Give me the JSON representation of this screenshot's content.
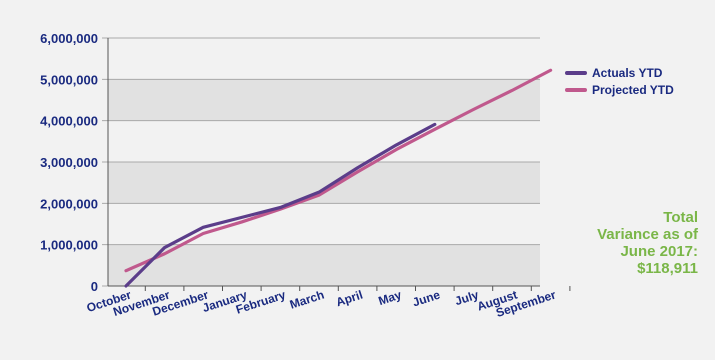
{
  "chart_data": {
    "type": "line",
    "categories": [
      "October",
      "November",
      "December",
      "January",
      "February",
      "March",
      "April",
      "May",
      "June",
      "July",
      "August",
      "September"
    ],
    "series": [
      {
        "name": "Actuals YTD",
        "color": "#5b3d8a",
        "values": [
          0,
          930000,
          1420000,
          1660000,
          1900000,
          2270000,
          2860000,
          3410000,
          3910000,
          null,
          null,
          null
        ]
      },
      {
        "name": "Projected YTD",
        "color": "#c0598d",
        "values": [
          370000,
          780000,
          1270000,
          1550000,
          1860000,
          2200000,
          2760000,
          3300000,
          3790000,
          4270000,
          4730000,
          5220000
        ]
      }
    ],
    "y_ticks": [
      "0",
      "1,000,000",
      "2,000,000",
      "3,000,000",
      "4,000,000",
      "5,000,000",
      "6,000,000"
    ],
    "ylim": [
      0,
      6000000
    ],
    "grid": true,
    "legend_position": "top-right",
    "annotation_lines": [
      "Total",
      "Variance as of",
      "June 2017:",
      "$118,911"
    ],
    "annotation_color": "#7ab648",
    "band_color": "#e1e1e1",
    "plot_background": "#f2f2f2"
  }
}
